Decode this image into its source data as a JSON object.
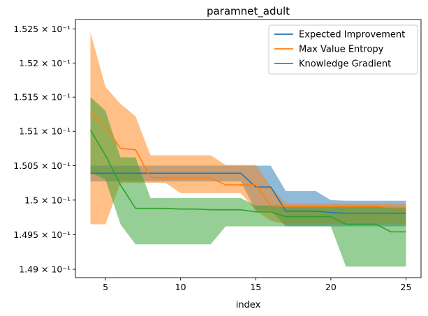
{
  "chart_data": {
    "type": "line",
    "title": "paramnet_adult",
    "xlabel": "index",
    "ylabel": "",
    "y_scale": "log",
    "xlim": [
      3,
      26
    ],
    "ylim": [
      0.14888,
      0.15264
    ],
    "x_ticks": [
      5,
      10,
      15,
      20,
      25
    ],
    "x_tick_labels": [
      "5",
      "10",
      "15",
      "20",
      "25"
    ],
    "y_ticks": [
      0.149,
      0.1495,
      0.15,
      0.1505,
      0.151,
      0.1515,
      0.152,
      0.1525
    ],
    "y_tick_labels": [
      "1.49 × 10⁻¹",
      "1.495 × 10⁻¹",
      "1.5 × 10⁻¹",
      "1.505 × 10⁻¹",
      "1.51 × 10⁻¹",
      "1.515 × 10⁻¹",
      "1.52 × 10⁻¹",
      "1.525 × 10⁻¹"
    ],
    "legend_position": "top-right",
    "x": [
      4,
      5,
      6,
      7,
      8,
      9,
      10,
      11,
      12,
      13,
      14,
      15,
      16,
      17,
      18,
      19,
      20,
      21,
      22,
      23,
      24,
      25
    ],
    "series": [
      {
        "name": "Expected Improvement",
        "color": "#1f77b4",
        "values": [
          0.15039,
          0.15039,
          0.15039,
          0.15039,
          0.15039,
          0.15039,
          0.15039,
          0.15039,
          0.15039,
          0.15039,
          0.15039,
          0.15019,
          0.15019,
          0.14984,
          0.14984,
          0.14984,
          0.14982,
          0.14981,
          0.14981,
          0.14981,
          0.14981,
          0.14981
        ],
        "lower": [
          0.15027,
          0.15027,
          0.15027,
          0.15027,
          0.15027,
          0.15027,
          0.15027,
          0.15027,
          0.15027,
          0.15027,
          0.15027,
          0.14985,
          0.14985,
          0.14962,
          0.14962,
          0.14962,
          0.14962,
          0.14962,
          0.14962,
          0.14962,
          0.14962,
          0.14962
        ],
        "upper": [
          0.1505,
          0.1505,
          0.1505,
          0.1505,
          0.1505,
          0.1505,
          0.1505,
          0.1505,
          0.1505,
          0.1505,
          0.1505,
          0.1505,
          0.1505,
          0.15013,
          0.15013,
          0.15013,
          0.15,
          0.14999,
          0.14999,
          0.14999,
          0.14999,
          0.14999
        ]
      },
      {
        "name": "Max Value Entropy",
        "color": "#ff7f0e",
        "values": [
          0.15127,
          0.15107,
          0.15075,
          0.15073,
          0.15033,
          0.15032,
          0.15032,
          0.15032,
          0.15032,
          0.15022,
          0.15022,
          0.15022,
          0.14992,
          0.14991,
          0.14991,
          0.14991,
          0.14991,
          0.14991,
          0.14991,
          0.14991,
          0.14989,
          0.14989
        ],
        "lower": [
          0.14965,
          0.14965,
          0.15025,
          0.15025,
          0.15025,
          0.15025,
          0.1501,
          0.1501,
          0.1501,
          0.1501,
          0.1501,
          0.14985,
          0.1497,
          0.14965,
          0.14965,
          0.14965,
          0.14965,
          0.14965,
          0.14965,
          0.14965,
          0.14965,
          0.14965
        ],
        "upper": [
          0.15245,
          0.15165,
          0.1514,
          0.15122,
          0.15065,
          0.15065,
          0.15065,
          0.15065,
          0.15065,
          0.15051,
          0.15051,
          0.15051,
          0.1502,
          0.14995,
          0.14995,
          0.14995,
          0.14995,
          0.14995,
          0.14995,
          0.14995,
          0.14995,
          0.14995
        ]
      },
      {
        "name": "Knowledge Gradient",
        "color": "#2ca02c",
        "values": [
          0.15102,
          0.15065,
          0.15022,
          0.14988,
          0.14988,
          0.14988,
          0.14987,
          0.14987,
          0.14986,
          0.14986,
          0.14986,
          0.14983,
          0.14983,
          0.14976,
          0.14976,
          0.14976,
          0.14976,
          0.14965,
          0.14965,
          0.14965,
          0.14954,
          0.14954
        ],
        "lower": [
          0.1504,
          0.1503,
          0.14965,
          0.14936,
          0.14936,
          0.14936,
          0.14936,
          0.14936,
          0.14936,
          0.14962,
          0.14962,
          0.14962,
          0.14962,
          0.14962,
          0.14962,
          0.14962,
          0.14962,
          0.14904,
          0.14904,
          0.14904,
          0.14904,
          0.14904
        ],
        "upper": [
          0.1515,
          0.1513,
          0.15062,
          0.15062,
          0.15003,
          0.15003,
          0.15003,
          0.15003,
          0.15003,
          0.15003,
          0.15003,
          0.14992,
          0.14992,
          0.1499,
          0.1499,
          0.1499,
          0.1499,
          0.1499,
          0.1499,
          0.1499,
          0.1499,
          0.1499
        ]
      }
    ]
  }
}
